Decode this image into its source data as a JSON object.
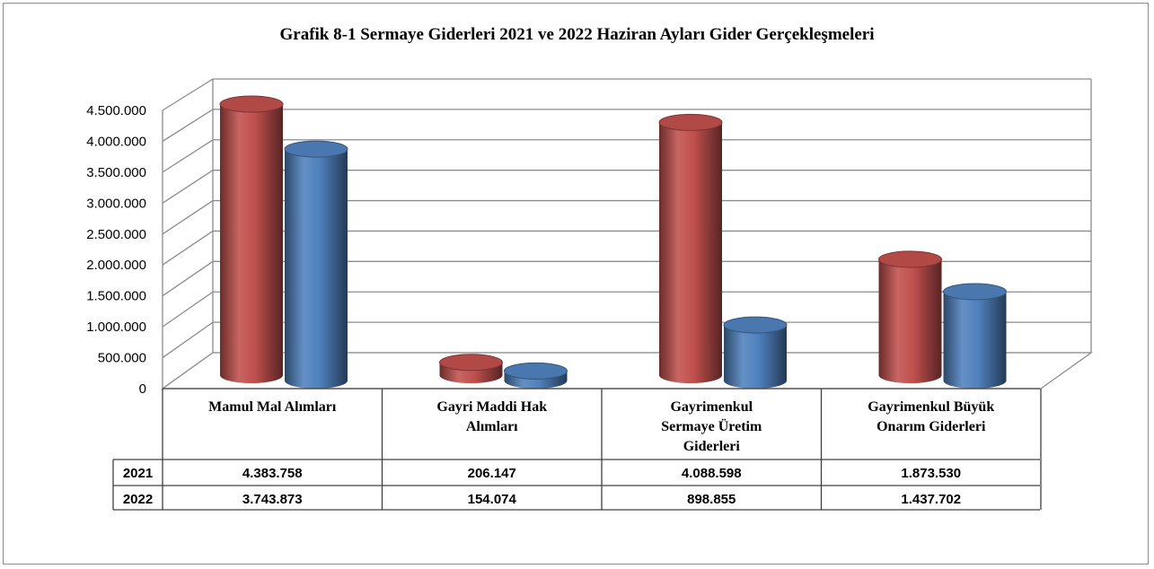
{
  "chart_data": {
    "type": "bar",
    "title": "Grafik 8-1 Sermaye Giderleri  2021 ve 2022 Haziran Ayları Gider Gerçekleşmeleri",
    "categories": [
      [
        "Mamul Mal Alımları"
      ],
      [
        "Gayri Maddi Hak",
        "Alımları"
      ],
      [
        "Gayrimenkul",
        "Sermaye Üretim",
        "Giderleri"
      ],
      [
        "Gayrimenkul Büyük",
        "Onarım Giderleri"
      ]
    ],
    "series": [
      {
        "name": "2021",
        "color": "#c0504d",
        "values": [
          4383758,
          206147,
          4088598,
          1873530
        ],
        "labels": [
          "4.383.758",
          "206.147",
          "4.088.598",
          "1.873.530"
        ]
      },
      {
        "name": "2022",
        "color": "#4f81bd",
        "values": [
          3743873,
          154074,
          898855,
          1437702
        ],
        "labels": [
          "3.743.873",
          "154.074",
          "898.855",
          "1.437.702"
        ]
      }
    ],
    "ylim": [
      0,
      4500000
    ],
    "yticks": [
      "0",
      "500.000",
      "1.000.000",
      "1.500.000",
      "2.000.000",
      "2.500.000",
      "3.000.000",
      "3.500.000",
      "4.000.000",
      "4.500.000"
    ],
    "grid": true,
    "legend": "data-table"
  }
}
